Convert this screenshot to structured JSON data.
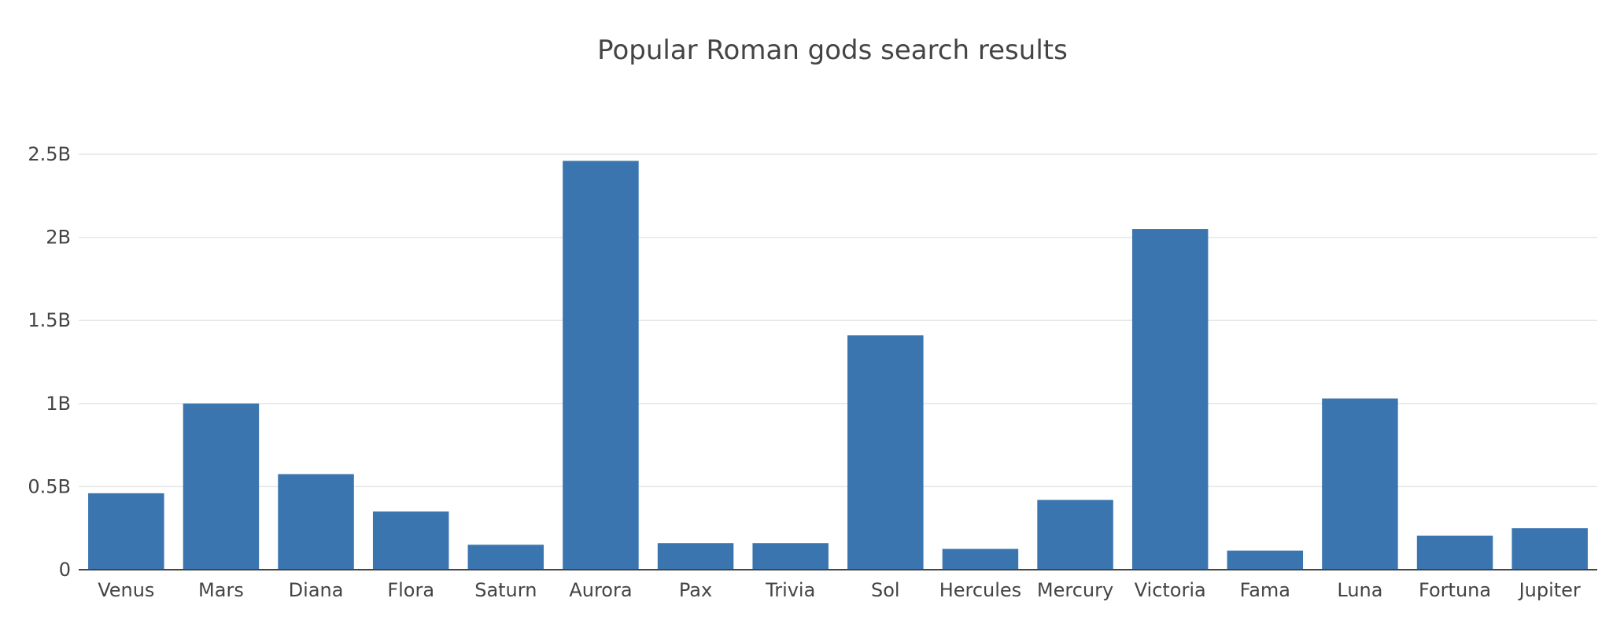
{
  "chart_data": {
    "type": "bar",
    "title": "Popular Roman gods search results",
    "xlabel": "",
    "ylabel": "",
    "categories": [
      "Venus",
      "Mars",
      "Diana",
      "Flora",
      "Saturn",
      "Aurora",
      "Pax",
      "Trivia",
      "Sol",
      "Hercules",
      "Mercury",
      "Victoria",
      "Fama",
      "Luna",
      "Fortuna",
      "Jupiter"
    ],
    "values": [
      460000000,
      1000000000,
      575000000,
      350000000,
      150000000,
      2460000000,
      160000000,
      160000000,
      1410000000,
      125000000,
      420000000,
      2050000000,
      115000000,
      1030000000,
      205000000,
      250000000
    ],
    "ylim": [
      0,
      2500000000
    ],
    "yticks": [
      0,
      500000000,
      1000000000,
      1500000000,
      2000000000,
      2500000000
    ],
    "ytick_labels": [
      "0",
      "0.5B",
      "1B",
      "1.5B",
      "2B",
      "2.5B"
    ],
    "grid": true,
    "legend": "none",
    "bar_color": "#3b75af"
  }
}
